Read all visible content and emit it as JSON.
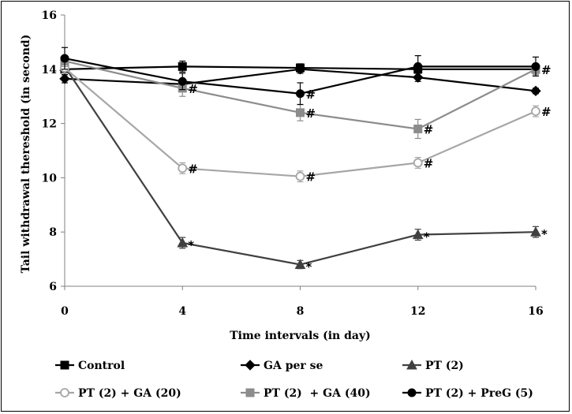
{
  "chart_data": {
    "type": "line",
    "title": "",
    "xlabel": "Time intervals (in day)",
    "ylabel": "Tail withdrawal thereshold (in second)",
    "x": [
      0,
      4,
      8,
      12,
      16
    ],
    "xlim": [
      0,
      16
    ],
    "ylim": [
      6,
      16
    ],
    "xticks": [
      "0",
      "4",
      "8",
      "12",
      "16"
    ],
    "yticks": [
      "6",
      "8",
      "10",
      "12",
      "14",
      "16"
    ],
    "grid": false,
    "legend_position": "bottom",
    "series": [
      {
        "name": "Control",
        "values": [
          14.0,
          14.1,
          14.05,
          14.0,
          14.0
        ],
        "errors": [
          0.2,
          0.2,
          0.15,
          0.15,
          0.15
        ],
        "color": "#000000",
        "marker": "square",
        "filled": true,
        "annotations": [
          "",
          "",
          "",
          "",
          ""
        ]
      },
      {
        "name": "GA per se",
        "values": [
          13.65,
          13.45,
          14.0,
          13.7,
          13.2
        ],
        "errors": [
          0.15,
          0.15,
          0.15,
          0.15,
          0.1
        ],
        "color": "#000000",
        "marker": "diamond",
        "filled": true,
        "annotations": [
          "",
          "",
          "",
          "",
          ""
        ]
      },
      {
        "name": "PT (2)",
        "values": [
          14.1,
          7.6,
          6.8,
          7.9,
          8.0
        ],
        "errors": [
          0.2,
          0.2,
          0.15,
          0.2,
          0.2
        ],
        "color": "#404040",
        "marker": "triangle",
        "filled": true,
        "annotations": [
          "",
          "*",
          "*",
          "*",
          "*"
        ]
      },
      {
        "name": "PT (2) + GA (20)",
        "values": [
          14.05,
          10.35,
          10.05,
          10.55,
          12.45
        ],
        "errors": [
          0.2,
          0.2,
          0.2,
          0.2,
          0.2
        ],
        "color": "#a6a6a6",
        "marker": "circle",
        "filled": false,
        "annotations": [
          "",
          "#",
          "#",
          "#",
          "#"
        ]
      },
      {
        "name": "PT (2)  + GA (40)",
        "values": [
          14.3,
          13.3,
          12.4,
          11.8,
          14.0
        ],
        "errors": [
          0.2,
          0.3,
          0.3,
          0.35,
          0.2
        ],
        "color": "#8c8c8c",
        "marker": "square",
        "filled": true,
        "annotations": [
          "",
          "#",
          "#",
          "#",
          "#"
        ]
      },
      {
        "name": "PT (2) + PreG (5)",
        "values": [
          14.4,
          13.55,
          13.1,
          14.1,
          14.1
        ],
        "errors": [
          0.4,
          0.3,
          0.4,
          0.4,
          0.35
        ],
        "color": "#000000",
        "marker": "circle",
        "filled": true,
        "annotations": [
          "",
          "",
          "#",
          "",
          ""
        ]
      }
    ]
  }
}
